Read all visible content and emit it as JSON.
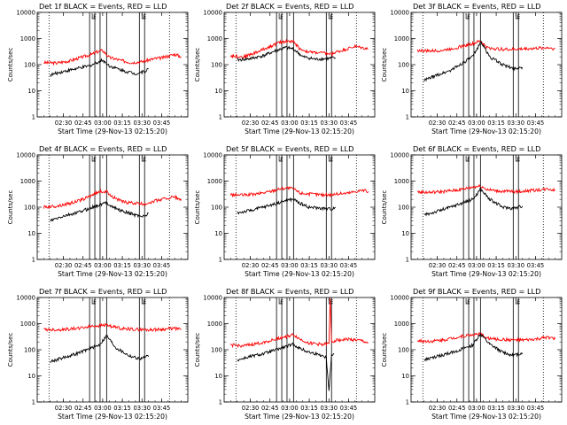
{
  "chart_data": [
    {
      "type": "line",
      "title": "Det 1f BLACK = Events, RED = LLD",
      "xlabel": "Start Time (29-Nov-13 02:15:20)",
      "ylabel": "Counts/sec",
      "xtick_labels": [
        "02:30",
        "02:45",
        "03:00",
        "03:15",
        "03:30",
        "03:45"
      ],
      "ytick_labels": [
        "1",
        "10",
        "100",
        "1000",
        "10000"
      ],
      "yscale": "log",
      "ylim": [
        1,
        10000
      ],
      "xlim_minutes": [
        -20,
        95
      ],
      "series": [
        {
          "color": "#ff0000",
          "x": [
            -15,
            -5,
            5,
            15,
            22,
            25,
            30,
            35,
            45,
            52,
            60,
            65,
            70,
            75,
            85,
            90
          ],
          "values": [
            120,
            115,
            140,
            200,
            250,
            300,
            350,
            190,
            140,
            120,
            130,
            150,
            170,
            180,
            250,
            200
          ]
        },
        {
          "color": "#000000",
          "x": [
            -10,
            0,
            10,
            20,
            27,
            30,
            35,
            45,
            55,
            62,
            65
          ],
          "values": [
            40,
            55,
            70,
            90,
            130,
            150,
            90,
            60,
            45,
            55,
            70
          ]
        }
      ],
      "markers": [
        {
          "x": 22,
          "label": "F"
        },
        {
          "x": 60,
          "label": "E"
        }
      ]
    },
    {
      "type": "line",
      "title": "Det 2f BLACK = Events, RED = LLD",
      "xlabel": "Start Time (29-Nov-13 02:15:20)",
      "ylabel": "Counts/sec",
      "xtick_labels": [
        "02:30",
        "02:45",
        "03:00",
        "03:15",
        "03:30",
        "03:45"
      ],
      "ytick_labels": [
        "1",
        "10",
        "100",
        "1000",
        "10000"
      ],
      "yscale": "log",
      "ylim": [
        1,
        10000
      ],
      "xlim_minutes": [
        -20,
        95
      ],
      "series": [
        {
          "color": "#ff0000",
          "x": [
            -15,
            -5,
            5,
            15,
            22,
            28,
            33,
            38,
            45,
            55,
            62,
            65,
            70,
            80,
            90
          ],
          "values": [
            220,
            200,
            300,
            500,
            700,
            800,
            750,
            400,
            300,
            280,
            250,
            300,
            350,
            500,
            400
          ]
        },
        {
          "color": "#000000",
          "x": [
            -10,
            0,
            10,
            20,
            27,
            33,
            40,
            50,
            58,
            65
          ],
          "values": [
            150,
            170,
            220,
            350,
            450,
            400,
            200,
            160,
            170,
            180
          ]
        }
      ],
      "markers": [
        {
          "x": 22,
          "label": "F"
        },
        {
          "x": 60,
          "label": "E"
        }
      ]
    },
    {
      "type": "line",
      "title": "Det 3f BLACK = Events, RED = LLD",
      "xlabel": "Start Time (29-Nov-13 02:15:20)",
      "ylabel": "Counts/sec",
      "xtick_labels": [
        "02:30",
        "02:45",
        "03:00",
        "03:15",
        "03:30",
        "03:45"
      ],
      "ytick_labels": [
        "1",
        "10",
        "100",
        "1000",
        "10000"
      ],
      "yscale": "log",
      "ylim": [
        1,
        10000
      ],
      "xlim_minutes": [
        -20,
        95
      ],
      "series": [
        {
          "color": "#ff0000",
          "x": [
            -15,
            -5,
            5,
            15,
            22,
            28,
            33,
            38,
            45,
            55,
            65,
            75,
            85,
            90
          ],
          "values": [
            350,
            330,
            360,
            450,
            550,
            650,
            800,
            450,
            400,
            380,
            400,
            420,
            450,
            400
          ]
        },
        {
          "color": "#000000",
          "x": [
            -10,
            0,
            10,
            20,
            27,
            30,
            33,
            40,
            50,
            58,
            65
          ],
          "values": [
            25,
            40,
            60,
            120,
            200,
            350,
            800,
            200,
            100,
            70,
            80
          ]
        }
      ],
      "markers": [
        {
          "x": 22,
          "label": "F"
        },
        {
          "x": 60,
          "label": "E"
        }
      ]
    },
    {
      "type": "line",
      "title": "Det 4f BLACK = Events, RED = LLD",
      "xlabel": "Start Time (29-Nov-13 02:15:20)",
      "ylabel": "Counts/sec",
      "xtick_labels": [
        "02:30",
        "02:45",
        "03:00",
        "03:15",
        "03:30",
        "03:45"
      ],
      "ytick_labels": [
        "1",
        "10",
        "100",
        "1000",
        "10000"
      ],
      "yscale": "log",
      "ylim": [
        1,
        10000
      ],
      "xlim_minutes": [
        -20,
        95
      ],
      "series": [
        {
          "color": "#ff0000",
          "x": [
            -15,
            -5,
            5,
            15,
            22,
            28,
            33,
            38,
            45,
            55,
            62,
            65,
            75,
            85,
            90
          ],
          "values": [
            100,
            110,
            140,
            200,
            300,
            400,
            380,
            250,
            160,
            140,
            130,
            150,
            200,
            250,
            180
          ]
        },
        {
          "color": "#000000",
          "x": [
            -10,
            0,
            10,
            20,
            27,
            33,
            38,
            45,
            55,
            62,
            65
          ],
          "values": [
            30,
            45,
            60,
            90,
            120,
            150,
            100,
            70,
            50,
            45,
            60
          ]
        }
      ],
      "markers": [
        {
          "x": 22,
          "label": "F"
        },
        {
          "x": 60,
          "label": "E"
        }
      ]
    },
    {
      "type": "line",
      "title": "Det 5f BLACK = Events, RED = LLD",
      "xlabel": "Start Time (29-Nov-13 02:15:20)",
      "ylabel": "Counts/sec",
      "xtick_labels": [
        "02:30",
        "02:45",
        "03:00",
        "03:15",
        "03:30",
        "03:45"
      ],
      "ytick_labels": [
        "1",
        "10",
        "100",
        "1000",
        "10000"
      ],
      "yscale": "log",
      "ylim": [
        1,
        10000
      ],
      "xlim_minutes": [
        -20,
        95
      ],
      "series": [
        {
          "color": "#ff0000",
          "x": [
            -15,
            -5,
            5,
            15,
            22,
            28,
            33,
            38,
            45,
            55,
            62,
            65,
            75,
            85,
            90
          ],
          "values": [
            300,
            290,
            320,
            400,
            500,
            550,
            500,
            350,
            320,
            300,
            300,
            320,
            350,
            450,
            400
          ]
        },
        {
          "color": "#000000",
          "x": [
            -10,
            0,
            10,
            20,
            27,
            33,
            38,
            45,
            55,
            62,
            65
          ],
          "values": [
            60,
            75,
            100,
            140,
            180,
            200,
            140,
            100,
            90,
            85,
            100
          ]
        }
      ],
      "markers": [
        {
          "x": 22,
          "label": "F"
        },
        {
          "x": 60,
          "label": "E"
        }
      ]
    },
    {
      "type": "line",
      "title": "Det 6f BLACK = Events, RED = LLD",
      "xlabel": "Start Time (29-Nov-13 02:15:20)",
      "ylabel": "Counts/sec",
      "xtick_labels": [
        "02:30",
        "02:45",
        "03:00",
        "03:15",
        "03:30",
        "03:45"
      ],
      "ytick_labels": [
        "1",
        "10",
        "100",
        "1000",
        "10000"
      ],
      "yscale": "log",
      "ylim": [
        1,
        10000
      ],
      "xlim_minutes": [
        -20,
        95
      ],
      "series": [
        {
          "color": "#ff0000",
          "x": [
            -15,
            -5,
            5,
            15,
            22,
            28,
            33,
            38,
            45,
            55,
            62,
            65,
            75,
            85,
            90
          ],
          "values": [
            380,
            370,
            400,
            450,
            520,
            600,
            650,
            480,
            420,
            400,
            390,
            410,
            450,
            500,
            450
          ]
        },
        {
          "color": "#000000",
          "x": [
            -10,
            0,
            10,
            20,
            27,
            30,
            33,
            40,
            50,
            58,
            65
          ],
          "values": [
            50,
            70,
            100,
            150,
            200,
            300,
            500,
            200,
            100,
            90,
            110
          ]
        }
      ],
      "markers": [
        {
          "x": 22,
          "label": "F"
        },
        {
          "x": 60,
          "label": "E"
        }
      ]
    },
    {
      "type": "line",
      "title": "Det 7f BLACK = Events, RED = LLD",
      "xlabel": "Start Time (29-Nov-13 02:15:20)",
      "ylabel": "Counts/sec",
      "xtick_labels": [
        "02:30",
        "02:45",
        "03:00",
        "03:15",
        "03:30",
        "03:45"
      ],
      "ytick_labels": [
        "1",
        "10",
        "100",
        "1000",
        "10000"
      ],
      "yscale": "log",
      "ylim": [
        1,
        10000
      ],
      "xlim_minutes": [
        -20,
        95
      ],
      "series": [
        {
          "color": "#ff0000",
          "x": [
            -15,
            -5,
            5,
            15,
            22,
            28,
            33,
            38,
            45,
            55,
            65,
            75,
            85,
            90
          ],
          "values": [
            600,
            580,
            620,
            700,
            800,
            850,
            900,
            750,
            650,
            600,
            580,
            600,
            650,
            600
          ]
        },
        {
          "color": "#000000",
          "x": [
            -10,
            0,
            10,
            20,
            27,
            30,
            33,
            40,
            50,
            58,
            65
          ],
          "values": [
            35,
            50,
            70,
            110,
            150,
            220,
            350,
            120,
            60,
            45,
            55
          ]
        }
      ],
      "markers": [
        {
          "x": 22,
          "label": "F"
        },
        {
          "x": 60,
          "label": "E"
        }
      ]
    },
    {
      "type": "line",
      "title": "Det 8f BLACK = Events, RED = LLD",
      "xlabel": "Start Time (29-Nov-13 02:15:20)",
      "ylabel": "Counts/sec",
      "xtick_labels": [
        "02:30",
        "02:45",
        "03:00",
        "03:15",
        "03:30",
        "03:45"
      ],
      "ytick_labels": [
        "1",
        "10",
        "100",
        "1000",
        "10000"
      ],
      "yscale": "log",
      "ylim": [
        1,
        10000
      ],
      "xlim_minutes": [
        -20,
        95
      ],
      "series": [
        {
          "color": "#ff0000",
          "x": [
            -15,
            -5,
            5,
            15,
            22,
            28,
            33,
            38,
            45,
            55,
            60,
            61,
            62,
            65,
            75,
            85,
            90
          ],
          "values": [
            150,
            140,
            170,
            220,
            280,
            320,
            380,
            250,
            180,
            160,
            170,
            9000,
            200,
            230,
            250,
            220,
            180
          ]
        },
        {
          "color": "#000000",
          "x": [
            -10,
            0,
            10,
            20,
            27,
            33,
            38,
            45,
            55,
            58,
            60,
            62,
            64
          ],
          "values": [
            40,
            55,
            70,
            100,
            130,
            160,
            110,
            80,
            60,
            50,
            3,
            60,
            70
          ]
        }
      ],
      "markers": [
        {
          "x": 22,
          "label": "F"
        },
        {
          "x": 60,
          "label": "E"
        }
      ]
    },
    {
      "type": "line",
      "title": "Det 9f BLACK = Events, RED = LLD",
      "xlabel": "Start Time (29-Nov-13 02:15:20)",
      "ylabel": "Counts/sec",
      "xtick_labels": [
        "02:30",
        "02:45",
        "03:00",
        "03:15",
        "03:30",
        "03:45"
      ],
      "ytick_labels": [
        "1",
        "10",
        "100",
        "1000",
        "10000"
      ],
      "yscale": "log",
      "ylim": [
        1,
        10000
      ],
      "xlim_minutes": [
        -20,
        95
      ],
      "series": [
        {
          "color": "#ff0000",
          "x": [
            -15,
            -5,
            5,
            15,
            22,
            28,
            33,
            38,
            45,
            55,
            65,
            75,
            85,
            90
          ],
          "values": [
            220,
            210,
            240,
            300,
            350,
            380,
            400,
            280,
            250,
            240,
            230,
            250,
            300,
            260
          ]
        },
        {
          "color": "#000000",
          "x": [
            -10,
            0,
            10,
            20,
            27,
            30,
            33,
            40,
            50,
            58,
            65
          ],
          "values": [
            40,
            55,
            75,
            110,
            150,
            250,
            400,
            160,
            80,
            60,
            75
          ]
        }
      ],
      "markers": [
        {
          "x": 22,
          "label": "F"
        },
        {
          "x": 60,
          "label": "E"
        }
      ]
    }
  ]
}
